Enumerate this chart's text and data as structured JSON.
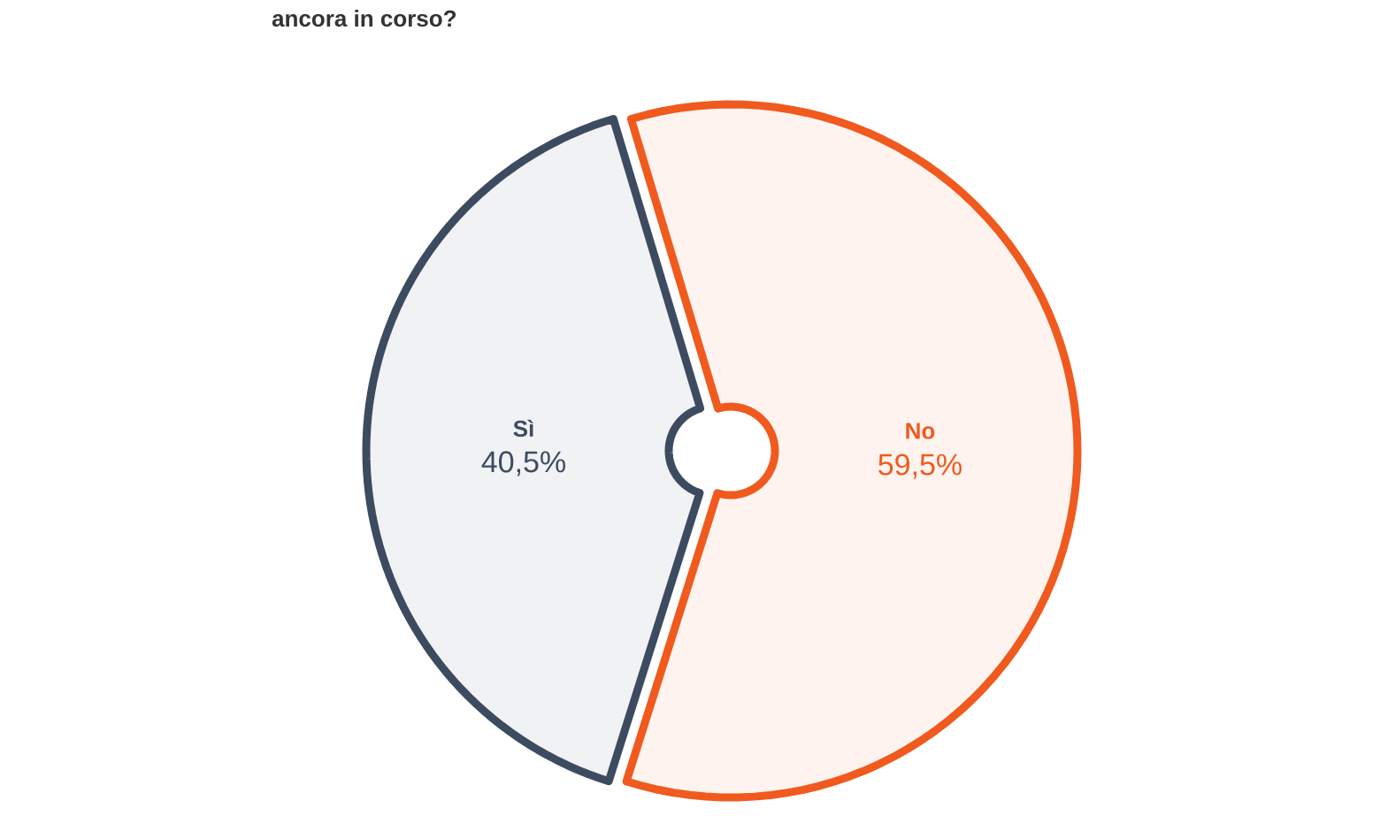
{
  "chart_data": {
    "type": "donut",
    "title": "ancora in corso?",
    "categories": [
      "Sì",
      "No"
    ],
    "values": [
      40.5,
      59.5
    ],
    "value_labels": [
      "40,5%",
      "59,5%"
    ],
    "colors": [
      "#3d4b60",
      "#f05a1e"
    ]
  }
}
